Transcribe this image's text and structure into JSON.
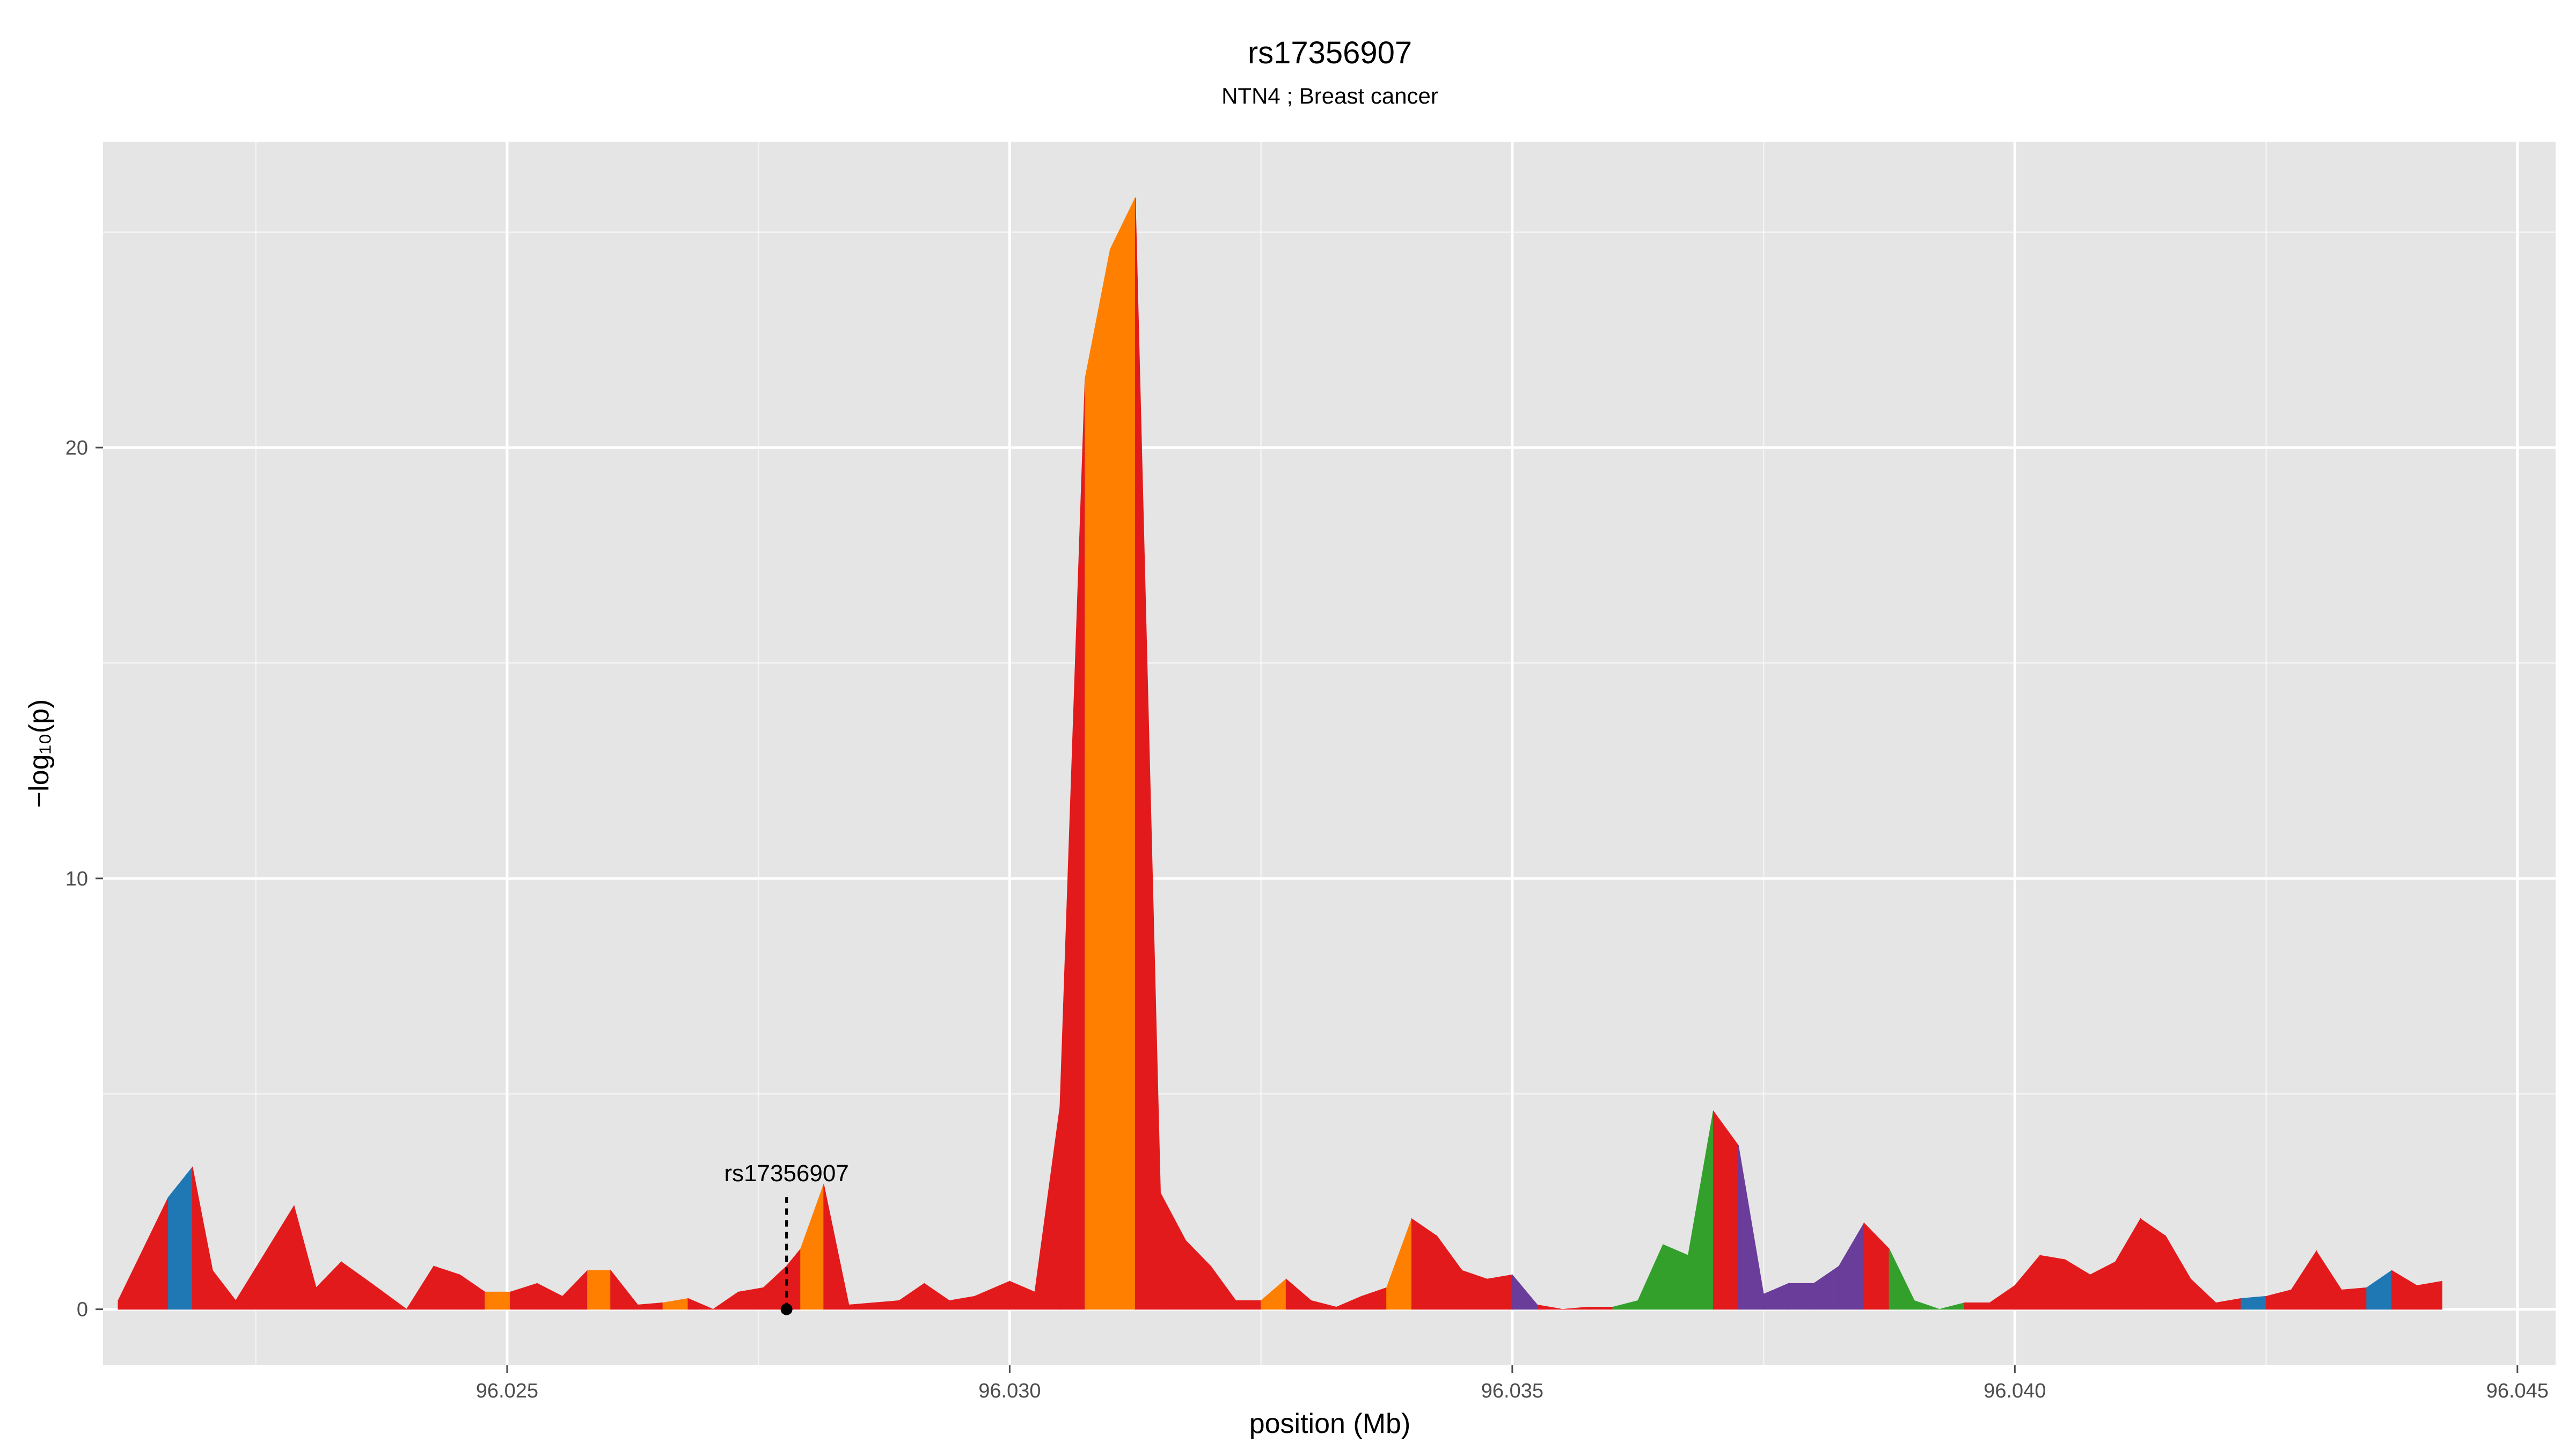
{
  "chart_data": {
    "type": "area",
    "title": "rs17356907",
    "subtitle": "NTN4 ; Breast cancer",
    "xlabel": "position (Mb)",
    "ylabel": "−log₁₀(p)",
    "xlim": [
      96.02098,
      96.04538
    ],
    "ylim": [
      -1.3,
      27.1
    ],
    "x_ticks": [
      96.025,
      96.03,
      96.035,
      96.04,
      96.045
    ],
    "x_tick_labels": [
      "96.025",
      "96.030",
      "96.035",
      "96.040",
      "96.045"
    ],
    "y_ticks": [
      0,
      10,
      20
    ],
    "y_tick_labels": [
      "0",
      "10",
      "20"
    ],
    "grid": true,
    "legend": "none",
    "colors": {
      "red": "#e31a1c",
      "blue": "#1f78b4",
      "orange": "#ff7f00",
      "green": "#33a02c",
      "purple": "#6a3d9a",
      "panel": "#e5e5e5",
      "grid": "#ffffff"
    },
    "annotation": {
      "label": "rs17356907",
      "x": 96.02778,
      "y": 0,
      "line_top": 2.6
    },
    "points": [
      [
        96.02113,
        0.2,
        "red"
      ],
      [
        96.02163,
        2.6,
        "red"
      ],
      [
        96.02187,
        3.3,
        "blue"
      ],
      [
        96.02207,
        0.9,
        "red"
      ],
      [
        96.0223,
        0.2,
        "red"
      ],
      [
        96.02288,
        2.4,
        "red"
      ],
      [
        96.0231,
        0.5,
        "red"
      ],
      [
        96.02335,
        1.1,
        "red"
      ],
      [
        96.02365,
        0.6,
        "red"
      ],
      [
        96.024,
        0.0,
        "red"
      ],
      [
        96.02427,
        1.0,
        "red"
      ],
      [
        96.02453,
        0.8,
        "red"
      ],
      [
        96.02478,
        0.4,
        "red"
      ],
      [
        96.02503,
        0.4,
        "orange"
      ],
      [
        96.0253,
        0.6,
        "red"
      ],
      [
        96.02555,
        0.3,
        "red"
      ],
      [
        96.0258,
        0.9,
        "red"
      ],
      [
        96.02603,
        0.9,
        "orange"
      ],
      [
        96.0263,
        0.1,
        "red"
      ],
      [
        96.02655,
        0.15,
        "red"
      ],
      [
        96.0268,
        0.25,
        "orange"
      ],
      [
        96.02705,
        0.0,
        "red"
      ],
      [
        96.0273,
        0.4,
        "red"
      ],
      [
        96.02755,
        0.5,
        "red"
      ],
      [
        96.02778,
        1.0,
        "red"
      ],
      [
        96.02792,
        1.4,
        "red"
      ],
      [
        96.02815,
        2.9,
        "orange"
      ],
      [
        96.0284,
        0.1,
        "red"
      ],
      [
        96.02865,
        0.15,
        "red"
      ],
      [
        96.0289,
        0.2,
        "red"
      ],
      [
        96.02915,
        0.6,
        "red"
      ],
      [
        96.0294,
        0.2,
        "red"
      ],
      [
        96.02965,
        0.3,
        "red"
      ],
      [
        96.03,
        0.65,
        "red"
      ],
      [
        96.03025,
        0.4,
        "red"
      ],
      [
        96.0305,
        4.7,
        "red"
      ],
      [
        96.03075,
        21.6,
        "red"
      ],
      [
        96.031,
        24.6,
        "orange"
      ],
      [
        96.03125,
        25.8,
        "orange"
      ],
      [
        96.0315,
        2.7,
        "red"
      ],
      [
        96.03175,
        1.6,
        "red"
      ],
      [
        96.032,
        1.0,
        "red"
      ],
      [
        96.03225,
        0.2,
        "red"
      ],
      [
        96.0325,
        0.2,
        "red"
      ],
      [
        96.03275,
        0.7,
        "orange"
      ],
      [
        96.033,
        0.2,
        "red"
      ],
      [
        96.03325,
        0.05,
        "red"
      ],
      [
        96.0335,
        0.3,
        "red"
      ],
      [
        96.03375,
        0.5,
        "red"
      ],
      [
        96.034,
        2.1,
        "orange"
      ],
      [
        96.03425,
        1.7,
        "red"
      ],
      [
        96.0345,
        0.9,
        "red"
      ],
      [
        96.03475,
        0.7,
        "red"
      ],
      [
        96.035,
        0.8,
        "red"
      ],
      [
        96.03525,
        0.1,
        "purple"
      ],
      [
        96.0355,
        0.0,
        "red"
      ],
      [
        96.03575,
        0.05,
        "red"
      ],
      [
        96.036,
        0.05,
        "red"
      ],
      [
        96.03625,
        0.2,
        "green"
      ],
      [
        96.0365,
        1.5,
        "green"
      ],
      [
        96.03675,
        1.25,
        "green"
      ],
      [
        96.037,
        4.6,
        "green"
      ],
      [
        96.03725,
        3.8,
        "red"
      ],
      [
        96.0375,
        0.35,
        "purple"
      ],
      [
        96.03775,
        0.6,
        "purple"
      ],
      [
        96.038,
        0.6,
        "purple"
      ],
      [
        96.03825,
        1.0,
        "purple"
      ],
      [
        96.0385,
        2.0,
        "purple"
      ],
      [
        96.03875,
        1.4,
        "red"
      ],
      [
        96.039,
        0.2,
        "green"
      ],
      [
        96.03925,
        0.0,
        "green"
      ],
      [
        96.0395,
        0.15,
        "green"
      ],
      [
        96.03975,
        0.15,
        "red"
      ],
      [
        96.04,
        0.55,
        "red"
      ],
      [
        96.04025,
        1.25,
        "red"
      ],
      [
        96.0405,
        1.15,
        "red"
      ],
      [
        96.04075,
        0.8,
        "red"
      ],
      [
        96.041,
        1.1,
        "red"
      ],
      [
        96.04125,
        2.1,
        "red"
      ],
      [
        96.0415,
        1.7,
        "red"
      ],
      [
        96.04175,
        0.7,
        "red"
      ],
      [
        96.042,
        0.15,
        "red"
      ],
      [
        96.04225,
        0.25,
        "red"
      ],
      [
        96.0425,
        0.3,
        "blue"
      ],
      [
        96.04275,
        0.45,
        "red"
      ],
      [
        96.043,
        1.35,
        "red"
      ],
      [
        96.04325,
        0.45,
        "red"
      ],
      [
        96.0435,
        0.5,
        "red"
      ],
      [
        96.04375,
        0.9,
        "blue"
      ],
      [
        96.044,
        0.55,
        "red"
      ],
      [
        96.04425,
        0.65,
        "red"
      ]
    ]
  }
}
